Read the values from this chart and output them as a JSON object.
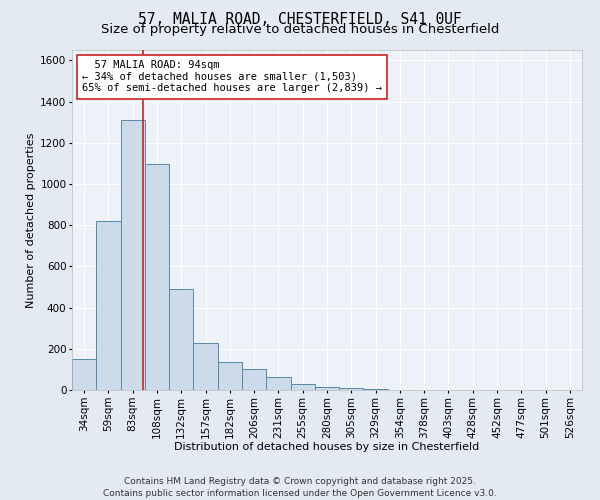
{
  "title_line1": "57, MALIA ROAD, CHESTERFIELD, S41 0UF",
  "title_line2": "Size of property relative to detached houses in Chesterfield",
  "xlabel": "Distribution of detached houses by size in Chesterfield",
  "ylabel": "Number of detached properties",
  "annotation_line1": "  57 MALIA ROAD: 94sqm  ",
  "annotation_line2": "← 34% of detached houses are smaller (1,503)",
  "annotation_line3": "65% of semi-detached houses are larger (2,839) →",
  "footer1": "Contains HM Land Registry data © Crown copyright and database right 2025.",
  "footer2": "Contains public sector information licensed under the Open Government Licence v3.0.",
  "categories": [
    "34sqm",
    "59sqm",
    "83sqm",
    "108sqm",
    "132sqm",
    "157sqm",
    "182sqm",
    "206sqm",
    "231sqm",
    "255sqm",
    "280sqm",
    "305sqm",
    "329sqm",
    "354sqm",
    "378sqm",
    "403sqm",
    "428sqm",
    "452sqm",
    "477sqm",
    "501sqm",
    "526sqm"
  ],
  "values": [
    150,
    820,
    1310,
    1095,
    490,
    230,
    135,
    100,
    65,
    30,
    15,
    8,
    4,
    2,
    1,
    1,
    0,
    0,
    0,
    0,
    0
  ],
  "bar_color": "#ccdaea",
  "bar_edge_color": "#5588aa",
  "red_line_color": "#cc2222",
  "annotation_box_edge": "#cc2222",
  "annotation_box_face": "#ffffff",
  "ylim": [
    0,
    1650
  ],
  "yticks": [
    0,
    200,
    400,
    600,
    800,
    1000,
    1200,
    1400,
    1600
  ],
  "bg_color": "#e4eaf2",
  "plot_bg_color": "#edf1f8",
  "grid_color": "#ffffff",
  "title1_fontsize": 10.5,
  "title2_fontsize": 9.5,
  "axis_label_fontsize": 8,
  "tick_fontsize": 7.5,
  "annotation_fontsize": 7.5,
  "footer_fontsize": 6.5
}
